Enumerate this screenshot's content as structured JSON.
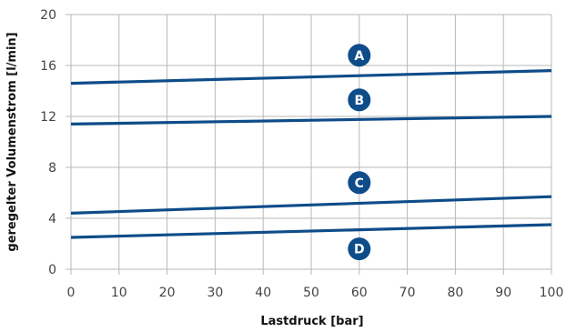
{
  "chart_data": {
    "type": "line",
    "title": "",
    "xlabel": "Lastdruck [bar]",
    "ylabel": "geregelter Volumenstrom [l/min]",
    "xlim": [
      0,
      100
    ],
    "ylim": [
      0,
      20
    ],
    "x_ticks": [
      0,
      10,
      20,
      30,
      40,
      50,
      60,
      70,
      80,
      90,
      100
    ],
    "y_ticks": [
      0,
      4,
      8,
      12,
      16,
      20
    ],
    "grid": true,
    "line_color": "#0e4c8a",
    "grid_color": "#b8b8b8",
    "series": [
      {
        "name": "A",
        "x": [
          0,
          100
        ],
        "y": [
          14.6,
          15.6
        ],
        "label_x": 60,
        "label_y": 16.8
      },
      {
        "name": "B",
        "x": [
          0,
          100
        ],
        "y": [
          11.4,
          12.0
        ],
        "label_x": 60,
        "label_y": 13.3
      },
      {
        "name": "C",
        "x": [
          0,
          100
        ],
        "y": [
          4.4,
          5.7
        ],
        "label_x": 60,
        "label_y": 6.8
      },
      {
        "name": "D",
        "x": [
          0,
          100
        ],
        "y": [
          2.5,
          3.5
        ],
        "label_x": 60,
        "label_y": 1.6
      }
    ]
  }
}
